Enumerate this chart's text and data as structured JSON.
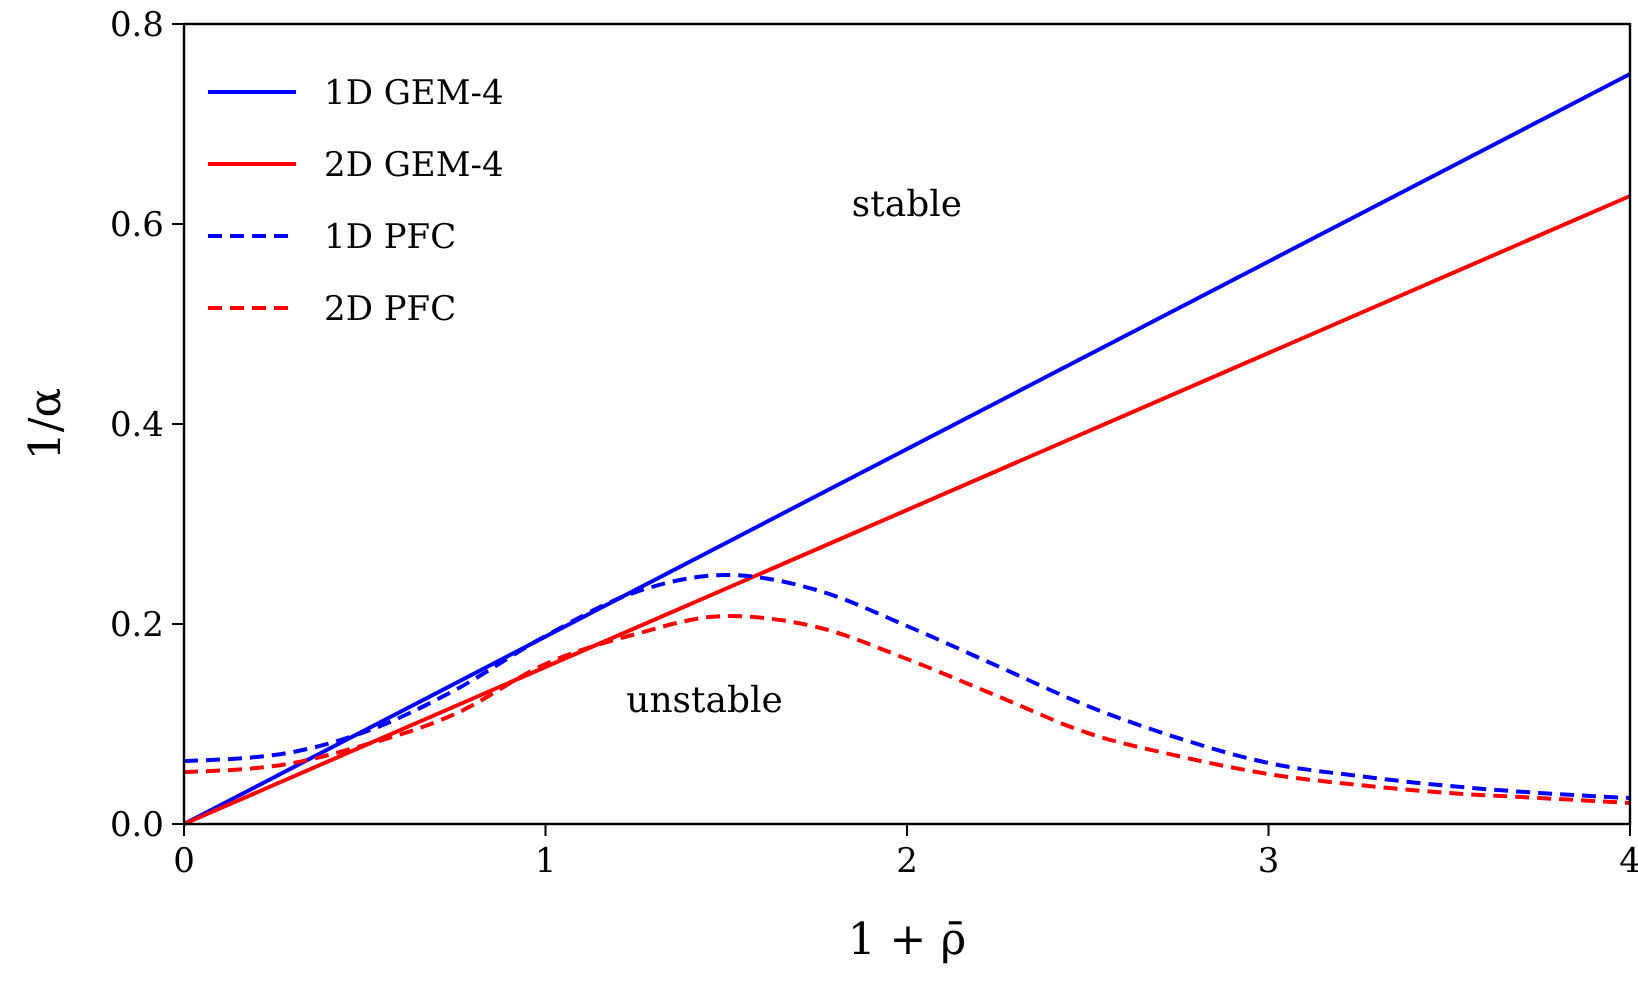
{
  "chart_data": {
    "type": "line",
    "xlabel": "1 + ρ̄",
    "ylabel": "1/α",
    "xlim": [
      0,
      4
    ],
    "ylim": [
      0,
      0.8
    ],
    "xticks": [
      0,
      1,
      2,
      3,
      4
    ],
    "yticks": [
      {
        "value": 0,
        "label": "0.0"
      },
      0.2,
      0.4,
      0.6,
      0.8
    ],
    "grid": false,
    "legend": "top left",
    "marker": "none",
    "series": [
      {
        "name": "1D GEM-4",
        "color": "#0000ff",
        "line_style": "solid",
        "x": [
          0,
          4
        ],
        "values": [
          0,
          0.75
        ]
      },
      {
        "name": "2D GEM-4",
        "color": "#ff0000",
        "line_style": "solid",
        "x": [
          0,
          4
        ],
        "values": [
          0,
          0.628
        ]
      },
      {
        "name": "1D PFC",
        "color": "#0000ff",
        "line_style": "dashed",
        "x": [
          0,
          0.25,
          0.5,
          0.75,
          1,
          1.25,
          1.5,
          1.75,
          2,
          2.25,
          2.5,
          2.75,
          3,
          3.25,
          3.5,
          3.75,
          4
        ],
        "values": [
          0.063,
          0.069,
          0.092,
          0.134,
          0.188,
          0.232,
          0.249,
          0.234,
          0.198,
          0.158,
          0.118,
          0.086,
          0.061,
          0.048,
          0.038,
          0.031,
          0.026
        ]
      },
      {
        "name": "2D PFC",
        "color": "#ff0000",
        "line_style": "dashed",
        "x": [
          0,
          0.25,
          0.5,
          0.75,
          1,
          1.25,
          1.5,
          1.75,
          2,
          2.25,
          2.5,
          2.75,
          3,
          3.25,
          3.5,
          3.75,
          4
        ],
        "values": [
          0.052,
          0.058,
          0.079,
          0.11,
          0.16,
          0.19,
          0.208,
          0.197,
          0.165,
          0.128,
          0.091,
          0.068,
          0.05,
          0.039,
          0.031,
          0.026,
          0.021
        ]
      }
    ],
    "annotations": [
      "stable",
      "unstable"
    ]
  }
}
